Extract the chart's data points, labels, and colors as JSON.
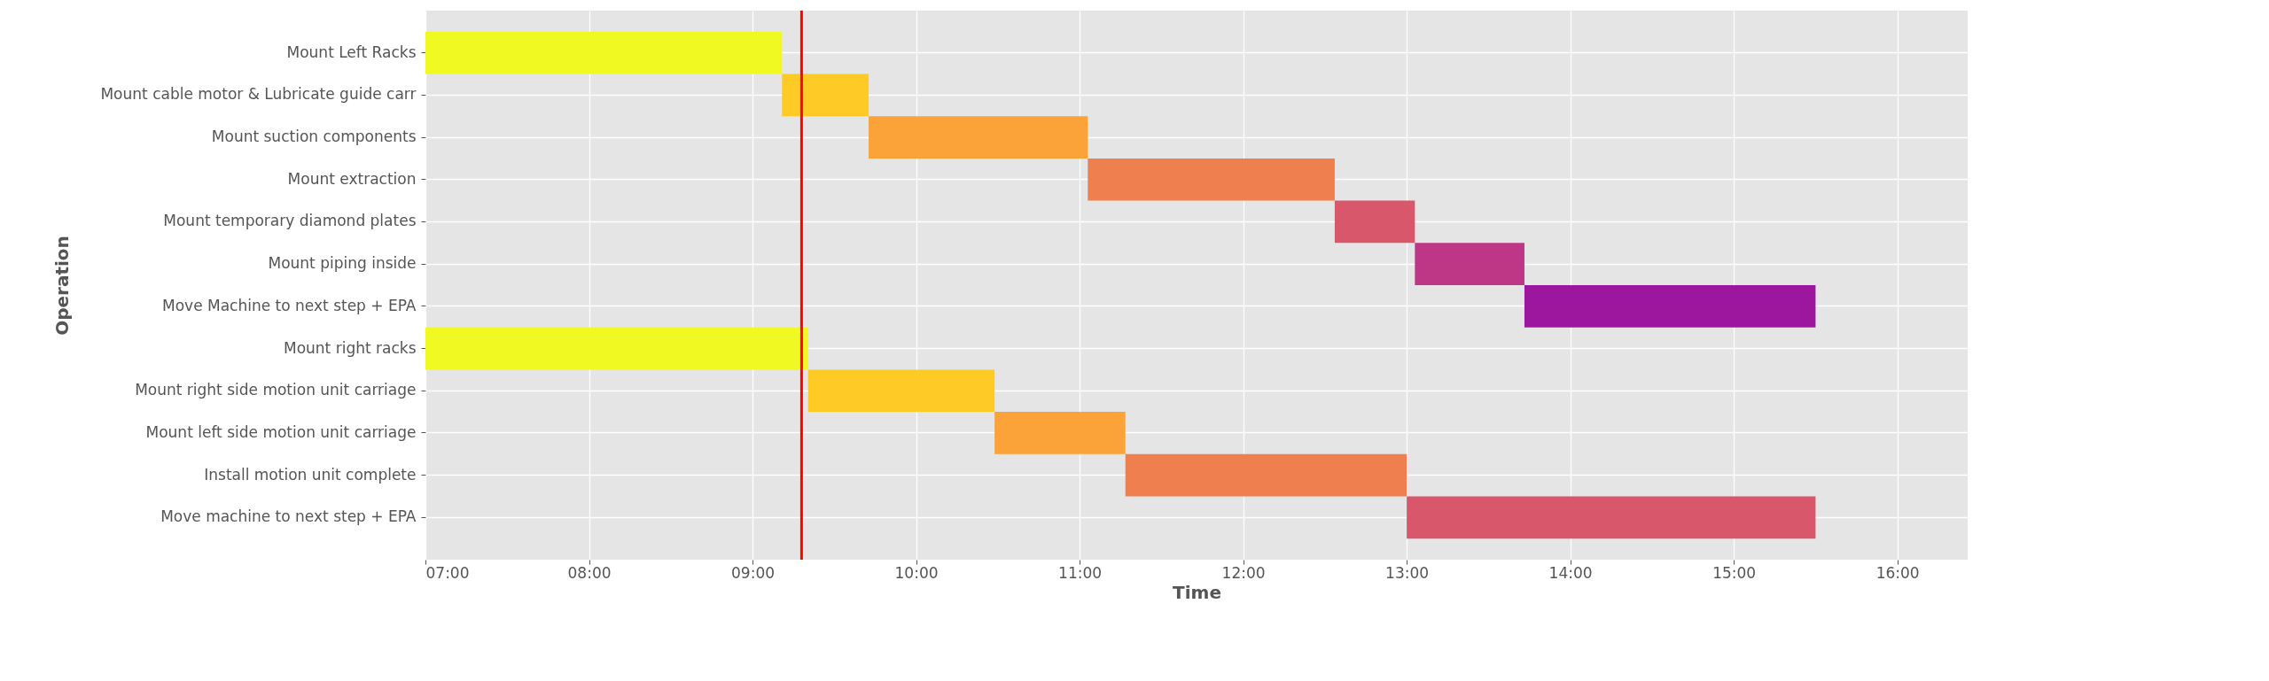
{
  "chart_data": {
    "type": "bar",
    "orientation": "horizontal",
    "xlabel": "Time",
    "ylabel": "Operation",
    "categories": [
      "Mount Left Racks",
      "Mount cable motor & Lubricate guide carr",
      "Mount suction components",
      "Mount extraction",
      "Mount temporary diamond plates",
      "Mount piping inside",
      "Move Machine to next step + EPA",
      "Mount right racks",
      "Mount right side motion unit carriage",
      "Mount left side motion unit carriage",
      "Install motion unit complete",
      "Move machine to next step + EPA"
    ],
    "base": [
      7,
      9.18,
      9.71,
      11.05,
      12.56,
      13.05,
      13.72,
      7,
      9.34,
      10.48,
      11.28,
      13.0
    ],
    "values": [
      2.18,
      0.53,
      1.34,
      1.51,
      0.49,
      0.67,
      1.78,
      2.34,
      1.14,
      0.8,
      1.72,
      2.5
    ],
    "colors": [
      "#f0f921",
      "#fdca26",
      "#fba238",
      "#f07f4f",
      "#d8576b",
      "#bd3786",
      "#9c179e",
      "#f0f921",
      "#fdca26",
      "#fba238",
      "#f07f4f",
      "#d8576b"
    ],
    "xlim": [
      7,
      16.43
    ],
    "xticks": [
      {
        "value": 7,
        "label": "07:00"
      },
      {
        "value": 8,
        "label": "08:00"
      },
      {
        "value": 9,
        "label": "09:00"
      },
      {
        "value": 10,
        "label": "10:00"
      },
      {
        "value": 11,
        "label": "11:00"
      },
      {
        "value": 12,
        "label": "12:00"
      },
      {
        "value": 13,
        "label": "13:00"
      },
      {
        "value": 14,
        "label": "14:00"
      },
      {
        "value": 15,
        "label": "15:00"
      },
      {
        "value": 16,
        "label": "16:00"
      }
    ],
    "ref_lines": [
      {
        "axis": "x",
        "value": 9.3,
        "color": "#ff0000"
      }
    ],
    "grid": true
  }
}
